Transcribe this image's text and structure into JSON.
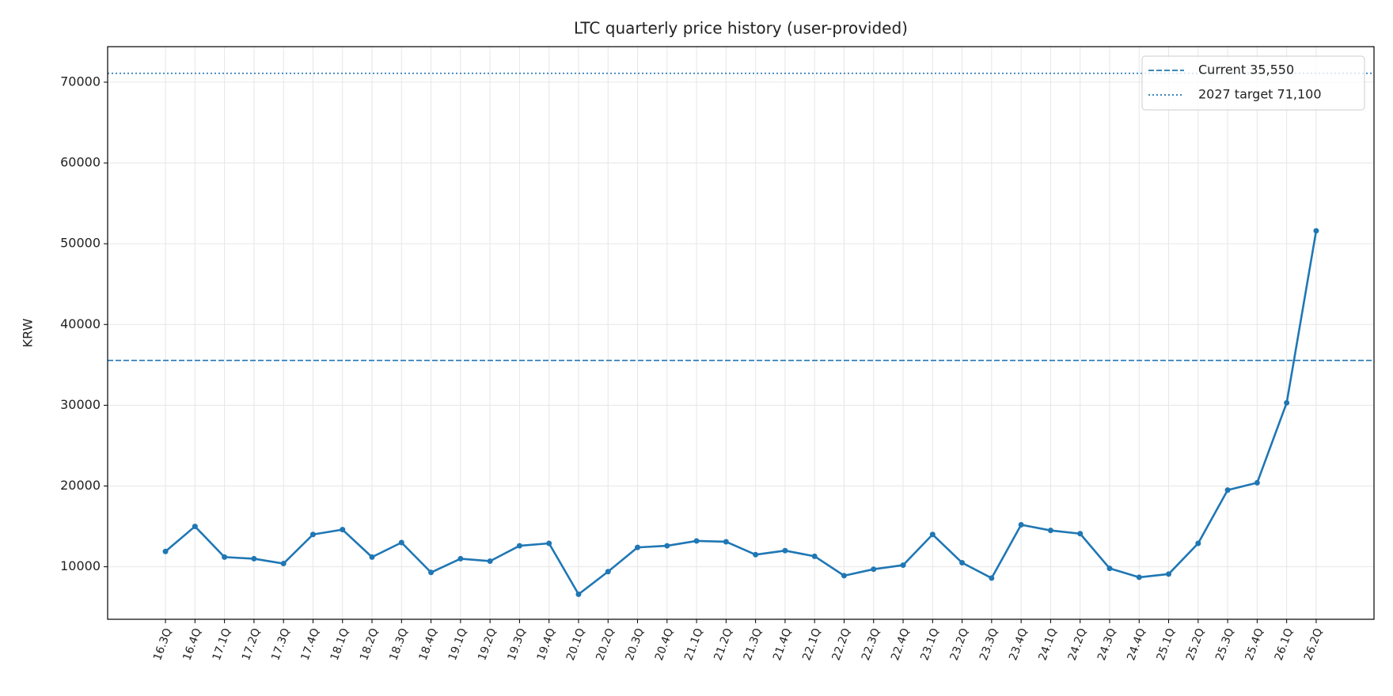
{
  "chart_data": {
    "type": "line",
    "title": "LTC quarterly price history (user-provided)",
    "y_label": "KRW",
    "categories": [
      "16.3Q",
      "16.4Q",
      "17.1Q",
      "17.2Q",
      "17.3Q",
      "17.4Q",
      "18.1Q",
      "18.2Q",
      "18.3Q",
      "18.4Q",
      "19.1Q",
      "19.2Q",
      "19.3Q",
      "19.4Q",
      "20.1Q",
      "20.2Q",
      "20.3Q",
      "20.4Q",
      "21.1Q",
      "21.2Q",
      "21.3Q",
      "21.4Q",
      "22.1Q",
      "22.2Q",
      "22.3Q",
      "22.4Q",
      "23.1Q",
      "23.2Q",
      "23.3Q",
      "23.4Q",
      "24.1Q",
      "24.2Q",
      "24.3Q",
      "24.4Q",
      "25.1Q",
      "25.2Q",
      "25.3Q",
      "25.4Q",
      "26.1Q",
      "26.2Q"
    ],
    "values": [
      11900,
      15000,
      11200,
      11000,
      10400,
      14000,
      14600,
      11200,
      13000,
      9300,
      11000,
      10700,
      12600,
      12900,
      6600,
      9400,
      12400,
      12600,
      13200,
      13100,
      11500,
      12000,
      11300,
      8900,
      9700,
      10200,
      14000,
      10500,
      8600,
      15200,
      14500,
      14100,
      9800,
      8700,
      9100,
      12900,
      19500,
      20400,
      30300,
      51600
    ],
    "color": "#1f77b4",
    "reference_lines": [
      {
        "name": "Current 35,550",
        "value": 35550,
        "style": "dashed",
        "color": "#1f77b4"
      },
      {
        "name": "2027 target 71,100",
        "value": 71100,
        "style": "dotted",
        "color": "#1f77b4"
      }
    ],
    "ylim": [
      3500,
      74400
    ],
    "yticks": [
      10000,
      20000,
      30000,
      40000,
      50000,
      60000,
      70000
    ],
    "grid": true,
    "legend": "upper right"
  }
}
